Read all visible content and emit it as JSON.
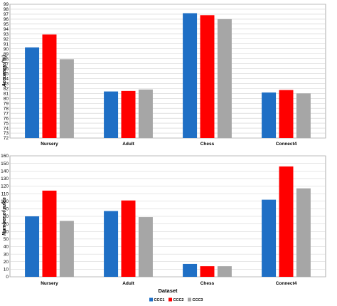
{
  "chart_data": [
    {
      "type": "bar",
      "ylabel": "Accuracy (%)",
      "categories": [
        "Nursery",
        "Adult",
        "Chess",
        "Connect4"
      ],
      "series": [
        {
          "name": "CCC1",
          "values": [
            90.3,
            81.4,
            97.2,
            81.2
          ]
        },
        {
          "name": "CCC2",
          "values": [
            92.9,
            81.5,
            96.8,
            81.7
          ]
        },
        {
          "name": "CCC3",
          "values": [
            87.9,
            81.8,
            96.0,
            81.0
          ]
        }
      ],
      "ylim": [
        72,
        99
      ],
      "yticks": [
        72,
        73,
        74,
        75,
        76,
        77,
        78,
        79,
        80,
        81,
        82,
        83,
        84,
        85,
        86,
        87,
        88,
        89,
        90,
        91,
        92,
        93,
        94,
        95,
        96,
        97,
        98,
        99
      ],
      "grid": true
    },
    {
      "type": "bar",
      "ylabel": "Number of rules",
      "xlabel": "Dataset",
      "categories": [
        "Nursery",
        "Adult",
        "Chess",
        "Connect4"
      ],
      "series": [
        {
          "name": "CCC1",
          "values": [
            80,
            87,
            17,
            102
          ]
        },
        {
          "name": "CCC2",
          "values": [
            114,
            101,
            14,
            146
          ]
        },
        {
          "name": "CCC3",
          "values": [
            74,
            79,
            14,
            117
          ]
        }
      ],
      "ylim": [
        0,
        160
      ],
      "yticks": [
        0,
        10,
        20,
        30,
        40,
        50,
        60,
        70,
        80,
        90,
        100,
        110,
        120,
        130,
        140,
        150,
        160
      ],
      "grid": true,
      "legend": "bottom-center"
    }
  ],
  "colors": {
    "CCC1": "#1f6fc5",
    "CCC2": "#ff0000",
    "CCC3": "#a6a6a6"
  }
}
